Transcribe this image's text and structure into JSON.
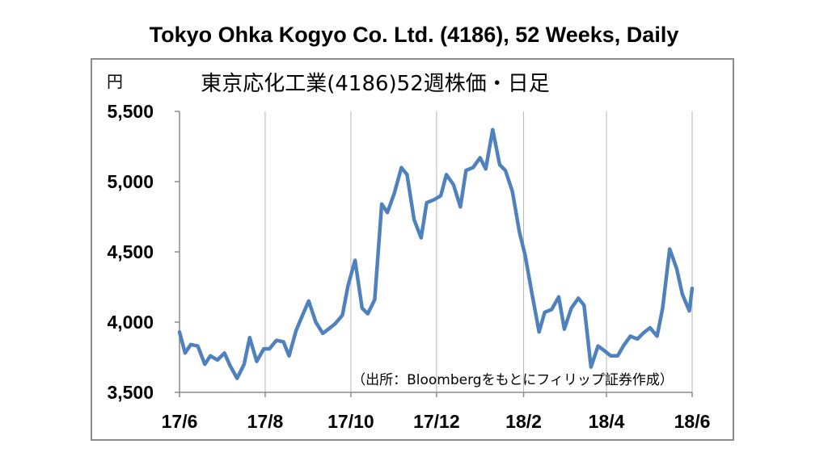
{
  "page_title": "Tokyo Ohka Kogyo Co. Ltd. (4186), 52 Weeks, Daily",
  "chart_data": {
    "type": "line",
    "title": "東京応化工業(4186)52週株価・日足",
    "unit_label": "円",
    "source_note": "（出所：Bloombergをもとにフィリップ証券作成）",
    "ylim": [
      3500,
      5500
    ],
    "y_ticks": [
      {
        "value": 3500,
        "label": "3,500"
      },
      {
        "value": 4000,
        "label": "4,000"
      },
      {
        "value": 4500,
        "label": "4,500"
      },
      {
        "value": 5000,
        "label": "5,000"
      },
      {
        "value": 5500,
        "label": "5,500"
      }
    ],
    "x_ticks": [
      {
        "value": "2017-06",
        "label": "17/6"
      },
      {
        "value": "2017-08",
        "label": "17/8"
      },
      {
        "value": "2017-10",
        "label": "17/10"
      },
      {
        "value": "2017-12",
        "label": "17/12"
      },
      {
        "value": "2018-02",
        "label": "18/2"
      },
      {
        "value": "2018-04",
        "label": "18/4"
      },
      {
        "value": "2018-06",
        "label": "18/6"
      }
    ],
    "line_color": "#4f81bd",
    "grid": "vertical",
    "series": [
      {
        "x": [
          "2017-06-01",
          "2017-06-05",
          "2017-06-09",
          "2017-06-14",
          "2017-06-19",
          "2017-06-23",
          "2017-06-28",
          "2017-07-03",
          "2017-07-07",
          "2017-07-12",
          "2017-07-17",
          "2017-07-21",
          "2017-07-26",
          "2017-07-31",
          "2017-08-04",
          "2017-08-09",
          "2017-08-14",
          "2017-08-18",
          "2017-08-23",
          "2017-08-28",
          "2017-09-01",
          "2017-09-06",
          "2017-09-11",
          "2017-09-15",
          "2017-09-20",
          "2017-09-25",
          "2017-09-29",
          "2017-10-04",
          "2017-10-09",
          "2017-10-13",
          "2017-10-18",
          "2017-10-23",
          "2017-10-27",
          "2017-11-01",
          "2017-11-06",
          "2017-11-10",
          "2017-11-15",
          "2017-11-20",
          "2017-11-24",
          "2017-11-29",
          "2017-12-04",
          "2017-12-08",
          "2017-12-13",
          "2017-12-18",
          "2017-12-22",
          "2017-12-27",
          "2018-01-01",
          "2018-01-05",
          "2018-01-10",
          "2018-01-15",
          "2018-01-19",
          "2018-01-24",
          "2018-01-29",
          "2018-02-02",
          "2018-02-07",
          "2018-02-12",
          "2018-02-16",
          "2018-02-21",
          "2018-02-26",
          "2018-03-02",
          "2018-03-07",
          "2018-03-12",
          "2018-03-16",
          "2018-03-21",
          "2018-03-26",
          "2018-03-30",
          "2018-04-04",
          "2018-04-09",
          "2018-04-13",
          "2018-04-18",
          "2018-04-23",
          "2018-04-27",
          "2018-05-02",
          "2018-05-07",
          "2018-05-11",
          "2018-05-16",
          "2018-05-21",
          "2018-05-25",
          "2018-05-30",
          "2018-06-01"
        ],
        "y": [
          3930,
          3780,
          3840,
          3830,
          3700,
          3760,
          3730,
          3780,
          3690,
          3600,
          3700,
          3890,
          3720,
          3810,
          3810,
          3870,
          3860,
          3760,
          3940,
          4060,
          4150,
          4000,
          3920,
          3950,
          3990,
          4050,
          4260,
          4440,
          4100,
          4060,
          4160,
          4840,
          4780,
          4920,
          5100,
          5050,
          4730,
          4600,
          4850,
          4870,
          4900,
          5050,
          4980,
          4820,
          5080,
          5100,
          5170,
          5090,
          5370,
          5120,
          5080,
          4930,
          4640,
          4480,
          4200,
          3930,
          4070,
          4090,
          4180,
          3950,
          4100,
          4170,
          4120,
          3680,
          3830,
          3800,
          3760,
          3760,
          3830,
          3900,
          3880,
          3920,
          3960,
          3900,
          4100,
          4520,
          4380,
          4200,
          4080,
          4240
        ]
      }
    ]
  }
}
